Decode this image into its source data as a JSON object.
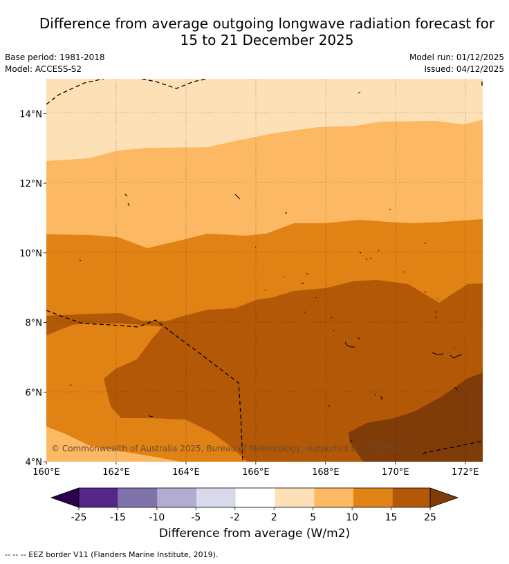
{
  "title_line1": "Difference from average outgoing longwave radiation forecast for",
  "title_line2": "15 to 21 December 2025",
  "base_period": "Base period: 1981-2018",
  "model": "Model: ACCESS-S2",
  "model_run": "Model run: 01/12/2025",
  "issued": "Issued: 04/12/2025",
  "copyright": "© Commonwealth of Australia 2025, Bureau of Meteorology, supported by COSPPac",
  "map": {
    "lon_range": [
      160,
      172.5
    ],
    "lat_range": [
      4,
      15
    ],
    "x_ticks": [
      {
        "value": 160,
        "label": "160°E"
      },
      {
        "value": 162,
        "label": "162°E"
      },
      {
        "value": 164,
        "label": "164°E"
      },
      {
        "value": 166,
        "label": "166°E"
      },
      {
        "value": 168,
        "label": "168°E"
      },
      {
        "value": 170,
        "label": "170°E"
      },
      {
        "value": 172,
        "label": "172°E"
      }
    ],
    "y_ticks": [
      {
        "value": 4,
        "label": "4°N"
      },
      {
        "value": 6,
        "label": "6°N"
      },
      {
        "value": 8,
        "label": "8°N"
      },
      {
        "value": 10,
        "label": "10°N"
      },
      {
        "value": 12,
        "label": "12°N"
      },
      {
        "value": 14,
        "label": "14°N"
      }
    ]
  },
  "colorbar": {
    "title": "Difference from average (W/m2)",
    "tick_labels": [
      "-25",
      "-15",
      "-10",
      "-5",
      "-2",
      "2",
      "5",
      "10",
      "15",
      "25"
    ],
    "colors": {
      "under": "#2d004b",
      "b1": "#542788",
      "b2": "#8073ac",
      "b3": "#b2abd2",
      "b4": "#d8daeb",
      "b5": "#ffffff",
      "b6": "#fee0b6",
      "b7": "#fdb863",
      "b8": "#e08214",
      "b9": "#b35806",
      "over": "#7f3b08"
    }
  },
  "eez_legend": "--  --  -- EEZ border V11 (Flanders Marine Institute, 2019)."
}
